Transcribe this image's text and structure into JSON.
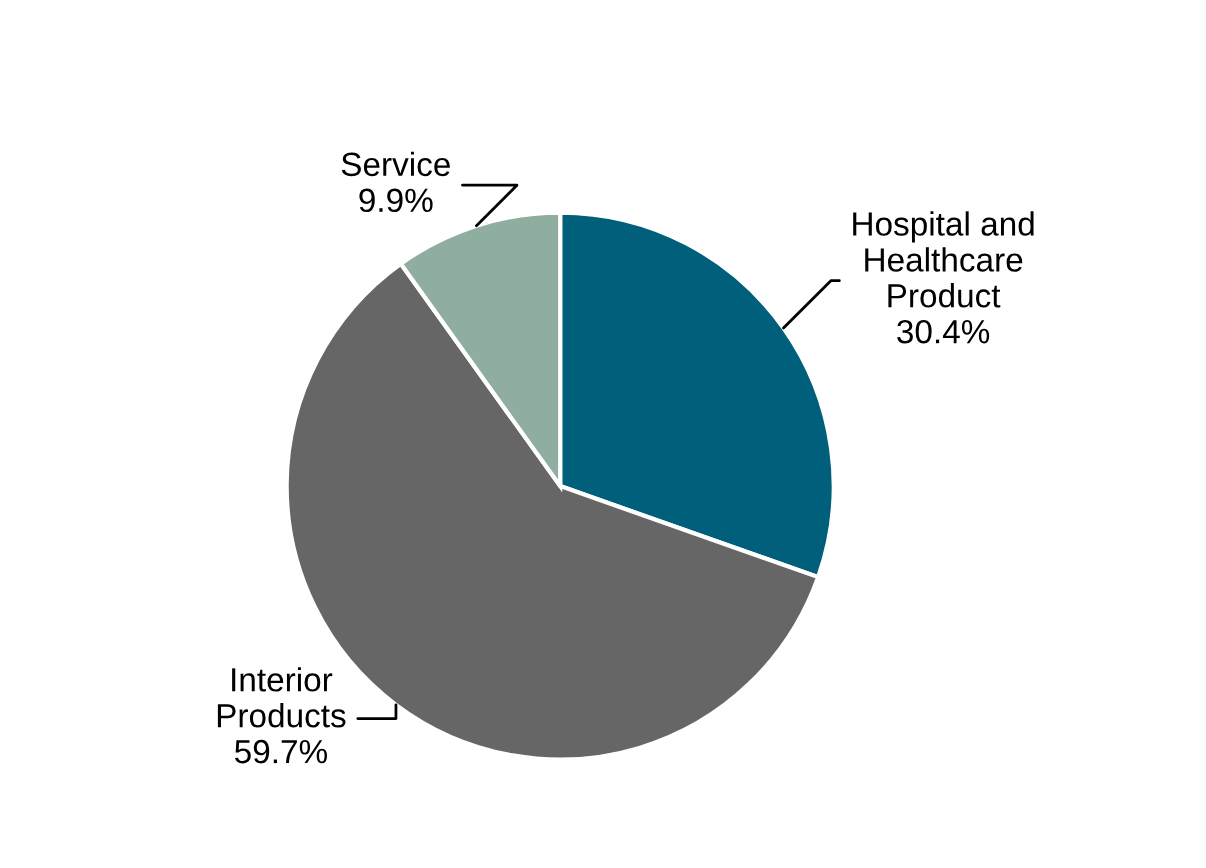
{
  "chart_data": {
    "type": "pie",
    "categories": [
      "Hospital and\nHealthcare\nProduct",
      "Interior\nProducts",
      "Service"
    ],
    "values": [
      30.4,
      59.7,
      9.9
    ],
    "value_labels": [
      "30.4%",
      "59.7%",
      "9.9%"
    ],
    "colors": [
      "#005f7a",
      "#666666",
      "#8fae9f"
    ],
    "legend": false
  }
}
